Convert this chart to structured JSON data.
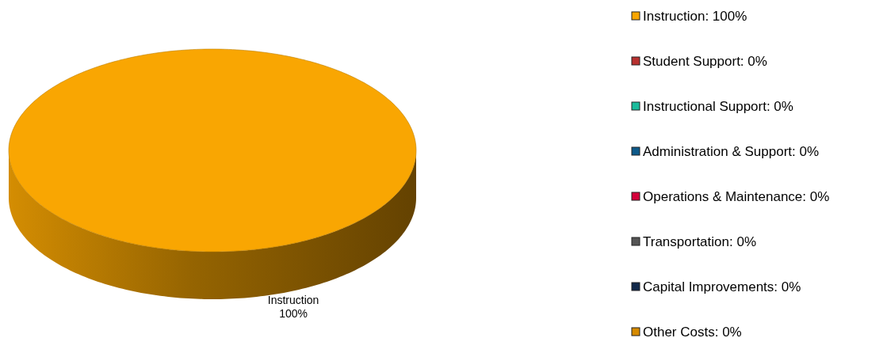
{
  "chart_data": {
    "type": "pie",
    "categories": [
      "Instruction: 100%",
      "Student Support: 0%",
      "Instructional Support: 0%",
      "Administration & Support: 0%",
      "Operations & Maintenance: 0%",
      "Transportation: 0%",
      "Capital Improvements: 0%",
      "Other Costs: 0%"
    ],
    "values": [
      100,
      0,
      0,
      0,
      0,
      0,
      0,
      0
    ],
    "colors": [
      "#f9a602",
      "#b8312f",
      "#1abc9c",
      "#0e5a8a",
      "#d5003a",
      "#555555",
      "#13294b",
      "#d68a00"
    ],
    "annotations": [
      "Instruction\n100%"
    ],
    "legend": "right"
  }
}
